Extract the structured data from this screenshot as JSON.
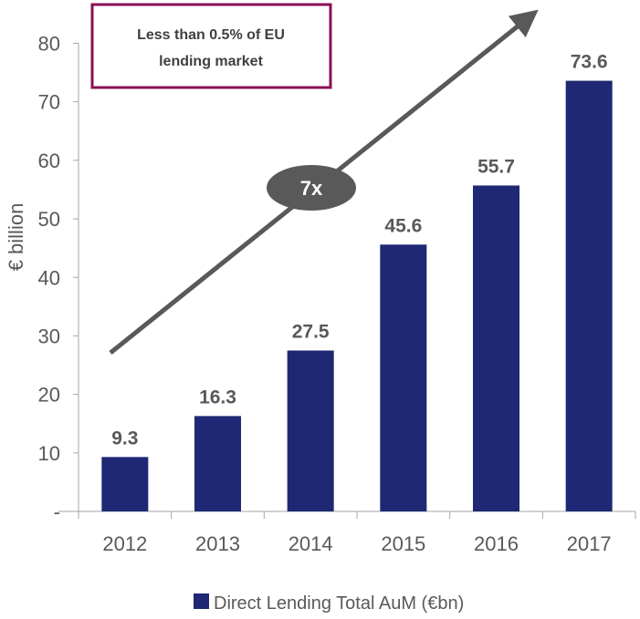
{
  "chart_data": {
    "type": "bar",
    "title": "",
    "xlabel": "",
    "ylabel": "€ billion",
    "ylim": [
      0,
      80
    ],
    "yticks": [
      0,
      10,
      20,
      30,
      40,
      50,
      60,
      70,
      80
    ],
    "ytick_labels": [
      "-",
      "10",
      "20",
      "30",
      "40",
      "50",
      "60",
      "70",
      "80"
    ],
    "categories": [
      "2012",
      "2013",
      "2014",
      "2015",
      "2016",
      "2017"
    ],
    "series": [
      {
        "name": "Direct Lending Total AuM (€bn)",
        "values": [
          9.3,
          16.3,
          27.5,
          45.6,
          55.7,
          73.6
        ],
        "labels": [
          "9.3",
          "16.3",
          "27.5",
          "45.6",
          "55.7",
          "73.6"
        ],
        "color": "#1f2874"
      }
    ],
    "legend_position": "bottom",
    "grid": false,
    "annotations": {
      "callout_box": "Less than 0.5% of EU lending market",
      "callout_box_line1": "Less than 0.5% of EU",
      "callout_box_line2": "lending market",
      "callout_color": "#8b0f55",
      "growth_label": "7x",
      "arrow_color": "#595959"
    }
  }
}
